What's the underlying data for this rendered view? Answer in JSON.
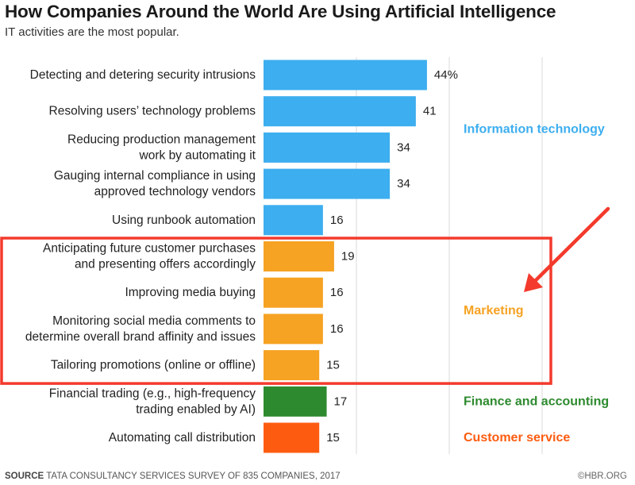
{
  "title": "How Companies Around the World Are Using Artificial Intelligence",
  "subtitle": "IT activities are the most popular.",
  "source_label": "SOURCE",
  "source_text": "TATA CONSULTANCY SERVICES SURVEY OF 835 COMPANIES, 2017",
  "brand": "©HBR.ORG",
  "colors": {
    "Information technology": "#3daeef",
    "Marketing": "#f6a223",
    "Finance and accounting": "#2e8a2f",
    "Customer service": "#fd5c10",
    "highlight": "#f33a2c",
    "grid": "#d9d9d9"
  },
  "chart_data": {
    "type": "bar",
    "orientation": "horizontal",
    "categories": [
      [
        "Detecting and detering security intrusions"
      ],
      [
        "Resolving users’ technology problems"
      ],
      [
        "Reducing production management",
        "work by automating it"
      ],
      [
        "Gauging internal compliance in using",
        "approved technology vendors"
      ],
      [
        "Using runbook automation"
      ],
      [
        "Anticipating future customer purchases",
        "and presenting offers accordingly"
      ],
      [
        "Improving media buying"
      ],
      [
        "Monitoring social media comments to",
        "determine overall brand affinity and issues"
      ],
      [
        "Tailoring promotions (online or offline)"
      ],
      [
        "Financial trading (e.g., high-frequency",
        "trading enabled by AI)"
      ],
      [
        "Automating call distribution"
      ]
    ],
    "values": [
      44,
      41,
      34,
      34,
      16,
      19,
      16,
      16,
      15,
      17,
      15
    ],
    "value_labels": [
      "44%",
      "41",
      "34",
      "34",
      "16",
      "19",
      "16",
      "16",
      "15",
      "17",
      "15"
    ],
    "groups": [
      "Information technology",
      "Information technology",
      "Information technology",
      "Information technology",
      "Information technology",
      "Marketing",
      "Marketing",
      "Marketing",
      "Marketing",
      "Finance and accounting",
      "Customer service"
    ],
    "group_labels": [
      {
        "name": "Information technology",
        "at_row": 1.5
      },
      {
        "name": "Marketing",
        "at_row": 6.5
      },
      {
        "name": "Finance and accounting",
        "at_row": 9
      },
      {
        "name": "Customer service",
        "at_row": 10
      }
    ],
    "xlim": [
      0,
      75
    ],
    "grid": true,
    "highlight_rows": [
      5,
      8
    ],
    "xlabel": "",
    "ylabel": ""
  }
}
